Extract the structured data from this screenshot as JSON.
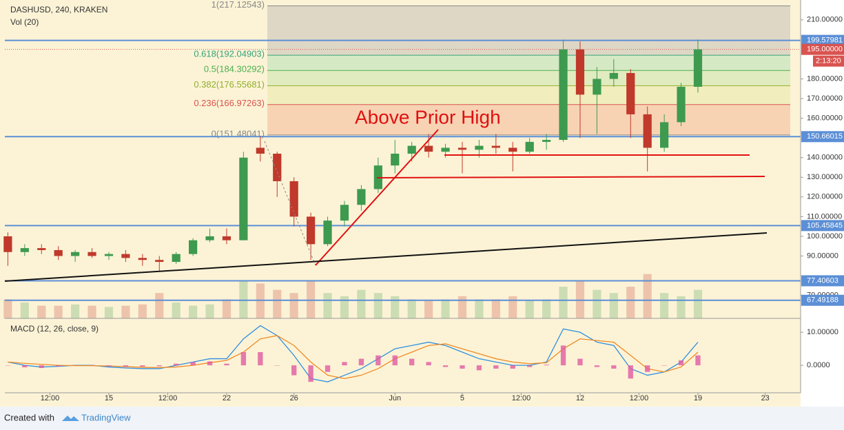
{
  "header": {
    "symbol": "DASHUSD, 240, KRAKEN",
    "volume_label": "Vol (20)"
  },
  "footer": {
    "created": "Created with",
    "brand": "TradingView"
  },
  "chart_data": [
    {
      "type": "candlestick",
      "annotation": "Above Prior High",
      "x": [
        9,
        10,
        11,
        12,
        13,
        14,
        15,
        16,
        17,
        18,
        19,
        20,
        21,
        22,
        23,
        24,
        25,
        26,
        27,
        28,
        29,
        30,
        31,
        32,
        33,
        34,
        35,
        36,
        37,
        38,
        39,
        40,
        41,
        42,
        43,
        44,
        45,
        46,
        47,
        48,
        49,
        50
      ],
      "open": [
        100,
        92,
        94,
        93,
        90,
        92,
        90,
        91,
        89,
        88,
        87,
        91,
        98,
        100,
        98,
        145,
        142,
        128,
        110,
        96,
        108,
        116,
        124,
        136,
        142,
        146,
        143,
        145,
        144,
        146,
        145,
        143,
        148,
        149,
        195,
        172,
        180,
        183,
        162,
        145,
        158,
        176
      ],
      "high": [
        102,
        96,
        96,
        95,
        93,
        94,
        92,
        93,
        91,
        90,
        92,
        99,
        104,
        104,
        143,
        151,
        143,
        130,
        112,
        110,
        118,
        126,
        140,
        149,
        148,
        152,
        147,
        148,
        149,
        152,
        148,
        150,
        152,
        200,
        199,
        186,
        190,
        185,
        166,
        162,
        178,
        200
      ],
      "low": [
        85,
        90,
        91,
        88,
        87,
        89,
        88,
        87,
        85,
        82,
        86,
        90,
        97,
        96,
        98,
        138,
        120,
        105,
        88,
        95,
        105,
        113,
        122,
        132,
        138,
        140,
        140,
        132,
        140,
        142,
        133,
        142,
        144,
        148,
        150,
        152,
        176,
        150,
        133,
        143,
        156,
        173
      ],
      "close": [
        92,
        94,
        93,
        90,
        92,
        90,
        91,
        89,
        88,
        87,
        91,
        98,
        100,
        98,
        140,
        142,
        128,
        110,
        96,
        108,
        116,
        124,
        136,
        142,
        146,
        143,
        145,
        144,
        146,
        145,
        143,
        148,
        149,
        195,
        172,
        180,
        183,
        162,
        145,
        158,
        176,
        195
      ],
      "volume": [
        30,
        25,
        20,
        20,
        22,
        20,
        18,
        20,
        22,
        40,
        25,
        20,
        22,
        30,
        60,
        55,
        45,
        40,
        60,
        40,
        35,
        45,
        40,
        35,
        30,
        28,
        30,
        35,
        30,
        30,
        35,
        28,
        30,
        50,
        60,
        45,
        40,
        50,
        70,
        40,
        35,
        45
      ],
      "volume_ylim": [
        0,
        100
      ],
      "up_color": "#3d9a4f",
      "down_color": "#c0392b",
      "xlim": [
        8.82,
        56.1
      ],
      "xticks": [
        {
          "value": 11.5,
          "label": "12:00"
        },
        15,
        {
          "value": 18.5,
          "label": "12:00"
        },
        22,
        26,
        {
          "value": 32,
          "label": "Jun"
        },
        {
          "value": 36,
          "label": "5"
        },
        {
          "value": 39.5,
          "label": "12:00"
        },
        {
          "value": 43,
          "label": "12"
        },
        {
          "value": 46.5,
          "label": "12:00"
        },
        {
          "value": 50,
          "label": "19"
        },
        {
          "value": 54,
          "label": "23"
        }
      ],
      "ylim": [
        58.3,
        220.1
      ],
      "yticks": [
        {
          "value": 70,
          "label": "70.00000"
        },
        {
          "value": 90,
          "label": "90.00000"
        },
        {
          "value": 100,
          "label": "100.00000"
        },
        {
          "value": 110,
          "label": "110.00000"
        },
        {
          "value": 120,
          "label": "120.00000"
        },
        {
          "value": 130,
          "label": "130.00000"
        },
        {
          "value": 140,
          "label": "140.00000"
        },
        {
          "value": 160,
          "label": "160.00000"
        },
        {
          "value": 170,
          "label": "170.00000"
        },
        {
          "value": 180,
          "label": "180.00000"
        },
        {
          "value": 210,
          "label": "210.00000"
        }
      ],
      "fib_levels": [
        {
          "value": 217.12543,
          "label": "1(217.12543)",
          "color": "#888888",
          "fill": "#d9d1c2"
        },
        {
          "value": 192.04903,
          "label": "0.618(192.04903)",
          "color": "#36a37a",
          "fill": "#cfe6c2"
        },
        {
          "value": 184.30292,
          "label": "0.5(184.30292)",
          "color": "#4caf50",
          "fill": "#dbe9bb"
        },
        {
          "value": 176.55681,
          "label": "0.382(176.55681)",
          "color": "#8fae2c",
          "fill": "#eeebb8"
        },
        {
          "value": 166.97263,
          "label": "0.236(166.97263)",
          "color": "#d9534f",
          "fill": "#f6cdae"
        },
        {
          "value": 151.48041,
          "label": "0(151.48041)",
          "color": "#888888"
        }
      ],
      "hlines": [
        {
          "value": 199.57981,
          "label": "199.57981"
        },
        {
          "value": 150.66015,
          "label": "150.66015"
        },
        {
          "value": 105.45845,
          "label": "105.45845"
        },
        {
          "value": 77.40603,
          "label": "77.40603"
        },
        {
          "value": 67.49188,
          "label": "67.49188"
        }
      ],
      "hline_color": "#5b8fd6",
      "last_price": {
        "value": 195,
        "label": "195.00000",
        "countdown": "2:13:20",
        "color": "#d9534f"
      }
    },
    {
      "type": "macd",
      "title": "MACD (12, 26, close, 9)",
      "series": [
        {
          "name": "MACD",
          "color": "#2f8fe0",
          "values": [
            1,
            0,
            -0.5,
            -0.3,
            0,
            0,
            -0.5,
            -0.8,
            -1,
            -1,
            0,
            1,
            2,
            2,
            8,
            12,
            9,
            3,
            -4,
            -5,
            -3,
            -1,
            2,
            5,
            6,
            7,
            6,
            4,
            2,
            1,
            0,
            0,
            1,
            11,
            10,
            7,
            6,
            -1,
            -3,
            -2,
            1,
            7
          ]
        },
        {
          "name": "Signal",
          "color": "#f08a24",
          "values": [
            1,
            0.6,
            0.3,
            0,
            -0.1,
            -0.1,
            -0.2,
            -0.4,
            -0.6,
            -0.7,
            -0.5,
            0,
            0.8,
            1.5,
            4,
            8,
            9,
            6,
            1,
            -3,
            -4,
            -3,
            -1,
            2,
            4,
            6,
            6.5,
            5,
            3.5,
            2,
            1,
            0.5,
            0.8,
            5,
            8,
            7.5,
            7,
            3,
            -1,
            -2,
            -0.5,
            4
          ]
        },
        {
          "name": "Histogram",
          "color": "#e05aa0",
          "values": [
            0,
            -0.6,
            -0.8,
            -0.3,
            0.1,
            0.1,
            -0.3,
            -0.4,
            -0.4,
            -0.3,
            0.5,
            1,
            1.2,
            0.5,
            4,
            4,
            0,
            -3,
            -5,
            -2,
            1,
            2,
            3,
            3,
            2,
            1,
            -0.5,
            -1,
            -1.5,
            -1,
            -1,
            -0.5,
            0.2,
            6,
            2,
            -0.5,
            -1,
            -4,
            -2,
            0,
            1.5,
            3
          ]
        }
      ],
      "ylim": [
        -8.3,
        14.2
      ],
      "yticks": [
        {
          "value": 0,
          "label": "0.0000"
        },
        {
          "value": 10,
          "label": "10.00000"
        }
      ]
    }
  ]
}
